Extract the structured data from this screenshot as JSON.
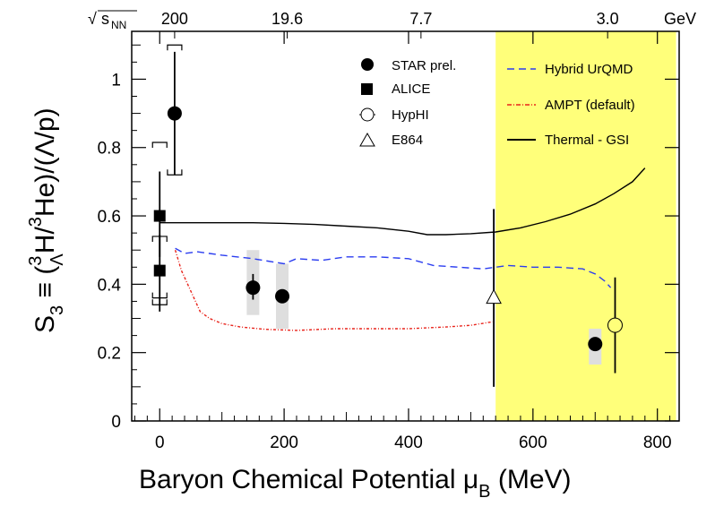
{
  "chart_data": {
    "type": "scatter",
    "xlabel": "Baryon Chemical Potential μB (MeV)",
    "xlabel_main": "Baryon Chemical Potential ",
    "xlabel_mu": "μ",
    "xlabel_sub": "B",
    "xlabel_unit": " (MeV)",
    "ylabel": "S3 ≡ (ΛH3/3He)/(Λ/p)",
    "ylabel_S": "S",
    "ylabel_S_sub": "3",
    "ylabel_rest1": " ≡ (",
    "ylabel_sup3a": "3",
    "ylabel_sub_lambda": "Λ",
    "ylabel_H": "H/",
    "ylabel_sup3b": "3",
    "ylabel_rest2": "He)/(Λ/p)",
    "xlim": [
      -45,
      835
    ],
    "ylim": [
      0,
      1.14
    ],
    "x_ticks": [
      "0",
      "200",
      "400",
      "600",
      "800"
    ],
    "x_tick_values": [
      0,
      200,
      400,
      600,
      800
    ],
    "y_ticks": [
      "0",
      "0.2",
      "0.4",
      "0.6",
      "0.8",
      "1"
    ],
    "y_tick_values": [
      0,
      0.2,
      0.4,
      0.6,
      0.8,
      1.0
    ],
    "top_axis": {
      "label_sqrt": "√",
      "label_s": "s",
      "label_sub": "NN",
      "unit": "GeV",
      "ticks": [
        {
          "label": "200",
          "mu": 24
        },
        {
          "label": "19.6",
          "mu": 205
        },
        {
          "label": "7.7",
          "mu": 420
        },
        {
          "label": "3.0",
          "mu": 720
        }
      ]
    },
    "shaded_region": {
      "x_from": 540,
      "x_to": 830,
      "color": "#ffff7a"
    },
    "series": [
      {
        "name": "STAR prel.",
        "marker": "filled-circle",
        "points": [
          {
            "x": 24,
            "y": 0.9,
            "err_low": 0.72,
            "err_high": 1.08,
            "sys_low": 0.72,
            "sys_high": 1.1,
            "sys_kind": "bracket"
          },
          {
            "x": 150,
            "y": 0.39,
            "err_low": 0.355,
            "err_high": 0.43,
            "sys_low": 0.31,
            "sys_high": 0.5,
            "sys_kind": "box"
          },
          {
            "x": 197,
            "y": 0.365,
            "err_low": 0.345,
            "err_high": 0.38,
            "sys_low": 0.27,
            "sys_high": 0.46,
            "sys_kind": "box"
          },
          {
            "x": 700,
            "y": 0.225,
            "err_low": 0.205,
            "err_high": 0.245,
            "sys_low": 0.165,
            "sys_high": 0.27,
            "sys_kind": "box"
          }
        ]
      },
      {
        "name": "ALICE",
        "marker": "filled-square",
        "points": [
          {
            "x": 0,
            "y": 0.6,
            "err_low": 0.48,
            "err_high": 0.73,
            "sys_low": 0.36,
            "sys_high": 0.815,
            "sys_kind": "bracket"
          },
          {
            "x": 0,
            "y": 0.44,
            "err_low": 0.32,
            "err_high": 0.545,
            "sys_low": 0.34,
            "sys_high": 0.54,
            "sys_kind": "bracket"
          }
        ]
      },
      {
        "name": "HypHI",
        "marker": "open-circle",
        "points": [
          {
            "x": 732,
            "y": 0.28,
            "err_low": 0.14,
            "err_high": 0.42
          }
        ]
      },
      {
        "name": "E864",
        "marker": "open-triangle",
        "points": [
          {
            "x": 537,
            "y": 0.36,
            "err_low": 0.1,
            "err_high": 0.62
          }
        ]
      }
    ],
    "curves": [
      {
        "name": "Hybrid UrQMD",
        "color": "#2b3df0",
        "style": "dashed",
        "x": [
          25,
          40,
          60,
          100,
          150,
          200,
          220,
          260,
          300,
          350,
          400,
          440,
          480,
          520,
          560,
          600,
          640,
          680,
          700,
          715,
          725
        ],
        "y": [
          0.505,
          0.49,
          0.495,
          0.485,
          0.475,
          0.46,
          0.475,
          0.47,
          0.48,
          0.48,
          0.475,
          0.455,
          0.45,
          0.445,
          0.455,
          0.45,
          0.45,
          0.445,
          0.43,
          0.41,
          0.39
        ]
      },
      {
        "name": "AMPT (default)",
        "color": "#e8231b",
        "style": "dash-dot",
        "x": [
          25,
          35,
          45,
          55,
          65,
          80,
          100,
          130,
          170,
          220,
          280,
          340,
          400,
          460,
          500,
          535
        ],
        "y": [
          0.5,
          0.44,
          0.4,
          0.36,
          0.32,
          0.3,
          0.285,
          0.275,
          0.268,
          0.265,
          0.27,
          0.27,
          0.27,
          0.275,
          0.28,
          0.29
        ]
      },
      {
        "name": "Thermal - GSI",
        "color": "#000000",
        "style": "solid",
        "x": [
          0,
          50,
          100,
          150,
          200,
          250,
          300,
          350,
          400,
          430,
          460,
          500,
          540,
          580,
          620,
          660,
          700,
          730,
          760,
          780
        ],
        "y": [
          0.58,
          0.58,
          0.58,
          0.58,
          0.578,
          0.575,
          0.57,
          0.565,
          0.555,
          0.545,
          0.545,
          0.548,
          0.553,
          0.565,
          0.583,
          0.605,
          0.635,
          0.665,
          0.7,
          0.74
        ]
      }
    ],
    "legend": {
      "left_entries": [
        "STAR prel.",
        "ALICE",
        "HypHI",
        "E864"
      ],
      "right_entries": [
        "Hybrid UrQMD",
        "AMPT (default)",
        "Thermal - GSI"
      ],
      "placement": "top-center"
    }
  }
}
